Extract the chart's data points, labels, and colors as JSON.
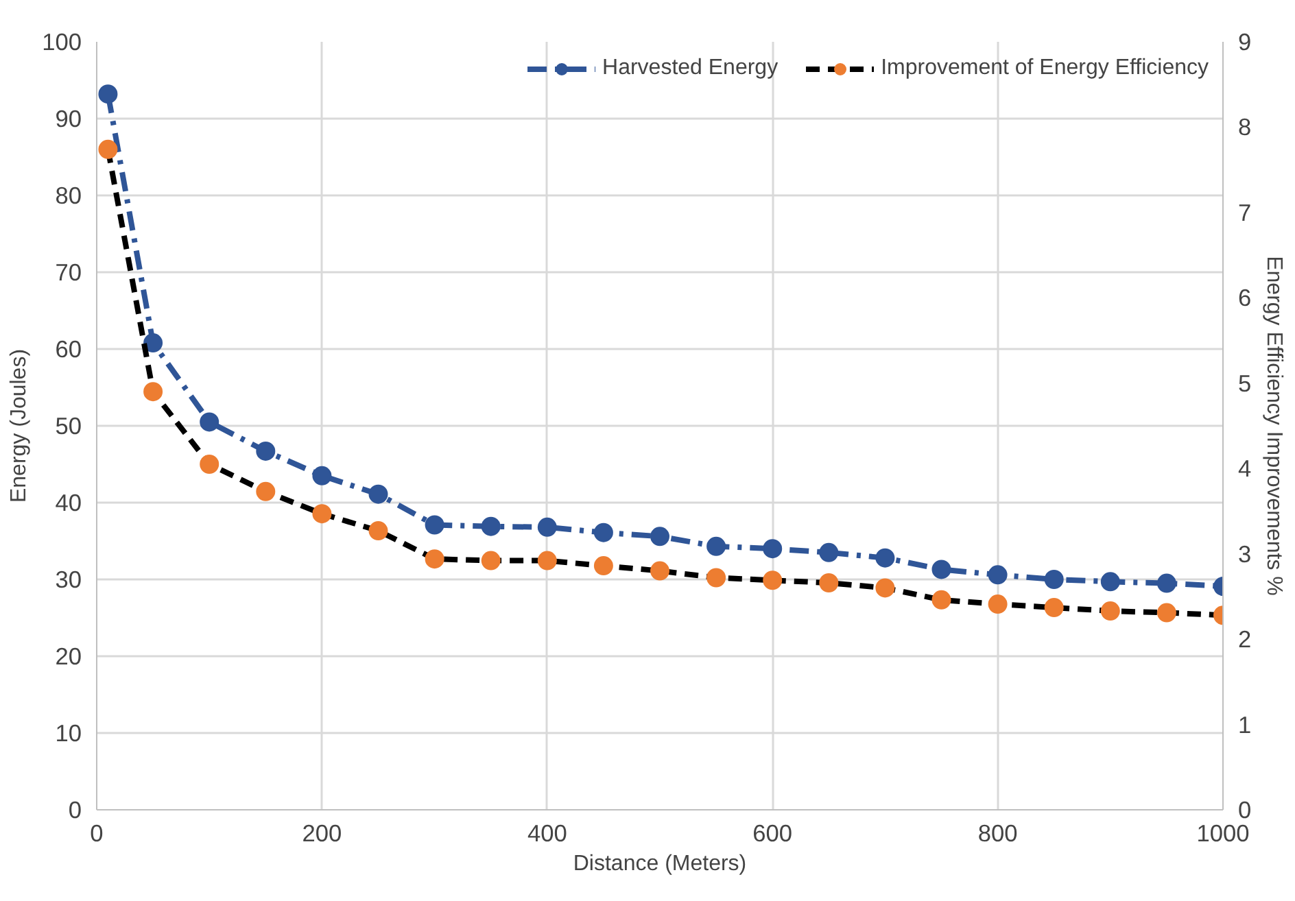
{
  "chart_data": {
    "type": "line",
    "xlabel": "Distance (Meters)",
    "ylabel": "Energy (Joules)",
    "y2label": "Energy Efficiency Improvements %",
    "x": [
      10,
      50,
      100,
      150,
      200,
      250,
      300,
      350,
      400,
      450,
      500,
      550,
      600,
      650,
      700,
      750,
      800,
      850,
      900,
      950,
      1000
    ],
    "series": [
      {
        "name": "Harvested Energy",
        "color": "#2f5597",
        "line_style": "dashdot",
        "values": [
          93.2,
          60.8,
          50.5,
          46.7,
          43.5,
          41.1,
          37.1,
          36.9,
          36.8,
          36.1,
          35.6,
          34.3,
          34.0,
          33.5,
          32.8,
          31.3,
          30.6,
          30.0,
          29.7,
          29.5,
          29.1
        ]
      },
      {
        "name": "Improvement of Energy Efficiency",
        "color": "#ed7d31",
        "line_style": "dashed",
        "axis": "y2",
        "values": [
          7.74,
          4.9,
          4.05,
          3.73,
          3.47,
          3.27,
          2.94,
          2.92,
          2.92,
          2.86,
          2.8,
          2.72,
          2.69,
          2.66,
          2.6,
          2.46,
          2.41,
          2.37,
          2.33,
          2.31,
          2.28
        ]
      }
    ],
    "xlim": [
      0,
      1000
    ],
    "xticks": [
      0,
      200,
      400,
      600,
      800,
      1000
    ],
    "ylim": [
      0,
      100
    ],
    "yticks": [
      0,
      10,
      20,
      30,
      40,
      50,
      60,
      70,
      80,
      90,
      100
    ],
    "y2lim": [
      0,
      9
    ],
    "y2ticks": [
      0,
      1,
      2,
      3,
      4,
      5,
      6,
      7,
      8,
      9
    ],
    "grid": true,
    "legend": "top right",
    "marker": "circle"
  }
}
